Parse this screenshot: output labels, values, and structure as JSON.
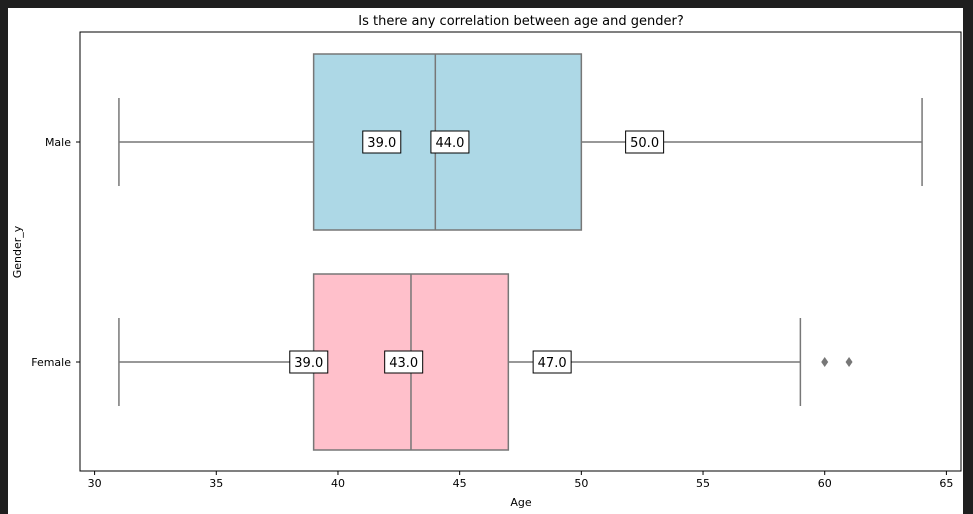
{
  "chart_data": {
    "type": "box",
    "title": "Is there any correlation between age and gender?",
    "xlabel": "Age",
    "ylabel": "Gender_y",
    "xlim": [
      29.4,
      65.6
    ],
    "xticks": [
      30,
      35,
      40,
      45,
      50,
      55,
      60,
      65
    ],
    "grid": false,
    "orientation": "horizontal",
    "categories": [
      "Male",
      "Female"
    ],
    "series": [
      {
        "name": "Male",
        "color": "#add8e6",
        "whisker_low": 31,
        "q1": 39,
        "median": 44,
        "q3": 50,
        "whisker_high": 64,
        "outliers": [],
        "labels": [
          "39.0",
          "44.0",
          "50.0"
        ]
      },
      {
        "name": "Female",
        "color": "#ffc0cb",
        "whisker_low": 31,
        "q1": 39,
        "median": 43,
        "q3": 47,
        "whisker_high": 59,
        "outliers": [
          60,
          61
        ],
        "labels": [
          "39.0",
          "43.0",
          "47.0"
        ]
      }
    ]
  }
}
